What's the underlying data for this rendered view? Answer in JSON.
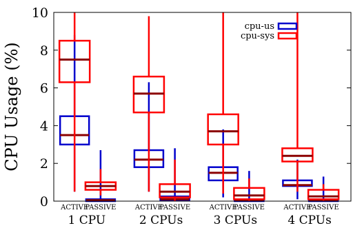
{
  "chart_data": {
    "type": "boxplot",
    "ylabel": "CPU Usage (%)",
    "ylim": [
      0,
      10
    ],
    "yticks": [
      0,
      2,
      4,
      6,
      8,
      10
    ],
    "groups": [
      "1 CPU",
      "2 CPUs",
      "3 CPUs",
      "4 CPUs"
    ],
    "subgroups": [
      "ACTIVE",
      "PASSIVE"
    ],
    "legend": {
      "position": "top-right",
      "orientation": "vertical"
    },
    "colors": {
      "cpu-us": "#0000cc",
      "cpu-sys": "#ff0000",
      "median": "#8b0000"
    },
    "series": [
      {
        "name": "cpu-us",
        "boxes": [
          {
            "group": "1 CPU",
            "subgroup": "ACTIVE",
            "whislo": 0.5,
            "q1": 3.0,
            "med": 3.5,
            "q3": 4.5,
            "whishi": 8.8
          },
          {
            "group": "1 CPU",
            "subgroup": "PASSIVE",
            "whislo": 0.0,
            "q1": 0.0,
            "med": 0.05,
            "q3": 0.1,
            "whishi": 2.7
          },
          {
            "group": "2 CPUs",
            "subgroup": "ACTIVE",
            "whislo": 0.5,
            "q1": 1.8,
            "med": 2.2,
            "q3": 2.7,
            "whishi": 6.3
          },
          {
            "group": "2 CPUs",
            "subgroup": "PASSIVE",
            "whislo": 0.0,
            "q1": 0.05,
            "med": 0.1,
            "q3": 0.25,
            "whishi": 2.8
          },
          {
            "group": "3 CPUs",
            "subgroup": "ACTIVE",
            "whislo": 0.2,
            "q1": 1.1,
            "med": 1.5,
            "q3": 1.8,
            "whishi": 3.8
          },
          {
            "group": "3 CPUs",
            "subgroup": "PASSIVE",
            "whislo": 0.0,
            "q1": 0.0,
            "med": 0.05,
            "q3": 0.1,
            "whishi": 1.6
          },
          {
            "group": "4 CPUs",
            "subgroup": "ACTIVE",
            "whislo": 0.1,
            "q1": 0.8,
            "med": 0.85,
            "q3": 1.1,
            "whishi": 2.2
          },
          {
            "group": "4 CPUs",
            "subgroup": "PASSIVE",
            "whislo": 0.0,
            "q1": 0.0,
            "med": 0.05,
            "q3": 0.1,
            "whishi": 1.3
          }
        ]
      },
      {
        "name": "cpu-sys",
        "boxes": [
          {
            "group": "1 CPU",
            "subgroup": "ACTIVE",
            "whislo": 0.5,
            "q1": 6.3,
            "med": 7.5,
            "q3": 8.5,
            "whishi": 10.0
          },
          {
            "group": "1 CPU",
            "subgroup": "PASSIVE",
            "whislo": 0.3,
            "q1": 0.6,
            "med": 0.8,
            "q3": 1.0,
            "whishi": 1.7
          },
          {
            "group": "2 CPUs",
            "subgroup": "ACTIVE",
            "whislo": 0.5,
            "q1": 4.7,
            "med": 5.7,
            "q3": 6.6,
            "whishi": 9.8
          },
          {
            "group": "2 CPUs",
            "subgroup": "PASSIVE",
            "whislo": 0.0,
            "q1": 0.2,
            "med": 0.5,
            "q3": 0.9,
            "whishi": 2.2
          },
          {
            "group": "3 CPUs",
            "subgroup": "ACTIVE",
            "whislo": 0.4,
            "q1": 3.0,
            "med": 3.7,
            "q3": 4.6,
            "whishi": 10.0
          },
          {
            "group": "3 CPUs",
            "subgroup": "PASSIVE",
            "whislo": 0.0,
            "q1": 0.1,
            "med": 0.3,
            "q3": 0.7,
            "whishi": 1.2
          },
          {
            "group": "4 CPUs",
            "subgroup": "ACTIVE",
            "whislo": 0.5,
            "q1": 2.1,
            "med": 2.4,
            "q3": 2.8,
            "whishi": 10.0
          },
          {
            "group": "4 CPUs",
            "subgroup": "PASSIVE",
            "whislo": 0.0,
            "q1": 0.1,
            "med": 0.25,
            "q3": 0.6,
            "whishi": 0.9
          }
        ]
      }
    ]
  }
}
